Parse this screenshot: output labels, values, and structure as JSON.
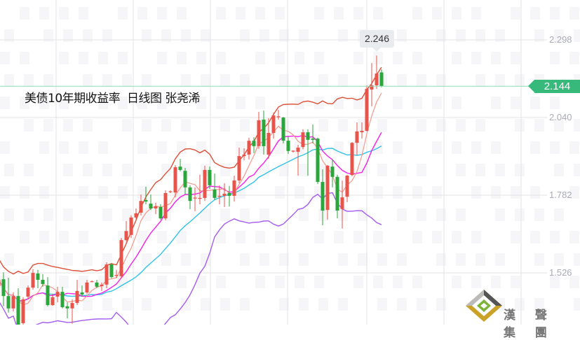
{
  "title": "美债10年期收益率  日线图 张尧浠",
  "logo_text": "漢 聲 集 團",
  "colors": {
    "up": "#e8534a",
    "down": "#2aa63a",
    "ma5": "#f4988c",
    "ma10": "#f521e9",
    "mid": "#33c2ea",
    "upper": "#dd5038",
    "lower": "#a45cf0",
    "last_line": "#8fdcb3",
    "last_tag": "#37b97c",
    "grid": "#e3e3e6"
  },
  "chart_data": {
    "type": "candlestick",
    "title": "美债10年期收益率  日线图 张尧浠",
    "y_ticks": [
      "2.298",
      "2.040",
      "1.782",
      "1.526"
    ],
    "ylim": [
      1.345,
      2.37
    ],
    "grid": true,
    "last_price": "2.144",
    "tooltip_high": "2.246",
    "indicators": [
      "MA5",
      "MA10",
      "Bollinger Bands"
    ],
    "ohlc": [
      [
        1.48,
        1.524,
        1.473,
        1.501
      ],
      [
        1.503,
        1.526,
        1.413,
        1.447
      ],
      [
        1.447,
        1.508,
        1.392,
        1.406
      ],
      [
        1.406,
        1.459,
        1.396,
        1.447
      ],
      [
        1.447,
        1.473,
        1.352,
        1.352
      ],
      [
        1.357,
        1.443,
        1.352,
        1.436
      ],
      [
        1.445,
        1.482,
        1.436,
        1.475
      ],
      [
        1.475,
        1.536,
        1.468,
        1.524
      ],
      [
        1.522,
        1.534,
        1.473,
        1.501
      ],
      [
        1.501,
        1.52,
        1.478,
        1.487
      ],
      [
        1.482,
        1.51,
        1.413,
        1.417
      ],
      [
        1.417,
        1.454,
        1.415,
        1.443
      ],
      [
        1.445,
        1.478,
        1.426,
        1.461
      ],
      [
        1.461,
        1.478,
        1.406,
        1.41
      ],
      [
        1.413,
        1.426,
        1.373,
        1.406
      ],
      [
        1.406,
        1.436,
        1.355,
        1.424
      ],
      [
        1.424,
        1.501,
        1.417,
        1.464
      ],
      [
        1.459,
        1.482,
        1.445,
        1.452
      ],
      [
        1.459,
        1.501,
        1.454,
        1.492
      ],
      [
        1.494,
        1.499,
        1.494,
        1.496
      ],
      [
        1.492,
        1.501,
        1.473,
        1.478
      ],
      [
        1.48,
        1.492,
        1.464,
        1.485
      ],
      [
        1.485,
        1.559,
        1.473,
        1.552
      ],
      [
        1.552,
        1.557,
        1.506,
        1.51
      ],
      [
        1.515,
        1.534,
        1.506,
        1.517
      ],
      [
        1.513,
        1.64,
        1.506,
        1.633
      ],
      [
        1.633,
        1.696,
        1.629,
        1.663
      ],
      [
        1.65,
        1.715,
        1.64,
        1.708
      ],
      [
        1.708,
        1.738,
        1.699,
        1.722
      ],
      [
        1.724,
        1.784,
        1.715,
        1.763
      ],
      [
        1.766,
        1.81,
        1.752,
        1.761
      ],
      [
        1.754,
        1.784,
        1.733,
        1.738
      ],
      [
        1.738,
        1.757,
        1.719,
        1.745
      ],
      [
        1.743,
        1.752,
        1.701,
        1.705
      ],
      [
        1.705,
        1.798,
        1.699,
        1.789
      ],
      [
        1.793,
        1.798,
        1.789,
        1.795
      ],
      [
        1.791,
        1.882,
        1.775,
        1.875
      ],
      [
        1.877,
        1.903,
        1.861,
        1.866
      ],
      [
        1.863,
        1.873,
        1.784,
        1.808
      ],
      [
        1.808,
        1.815,
        1.736,
        1.763
      ],
      [
        1.772,
        1.808,
        1.729,
        1.774
      ],
      [
        1.77,
        1.85,
        1.752,
        1.773
      ],
      [
        1.773,
        1.88,
        1.763,
        1.866
      ],
      [
        1.866,
        1.877,
        1.803,
        1.815
      ],
      [
        1.801,
        1.854,
        1.766,
        1.773
      ],
      [
        1.777,
        1.815,
        1.752,
        1.78
      ],
      [
        1.78,
        1.822,
        1.743,
        1.787
      ],
      [
        1.789,
        1.813,
        1.745,
        1.78
      ],
      [
        1.78,
        1.847,
        1.761,
        1.831
      ],
      [
        1.831,
        1.94,
        1.822,
        1.912
      ],
      [
        1.912,
        1.938,
        1.898,
        1.917
      ],
      [
        1.917,
        1.973,
        1.901,
        1.963
      ],
      [
        1.963,
        1.975,
        1.922,
        1.945
      ],
      [
        1.945,
        2.059,
        1.936,
        2.031
      ],
      [
        2.033,
        2.063,
        1.917,
        1.945
      ],
      [
        1.917,
        2.038,
        1.903,
        1.989
      ],
      [
        1.989,
        2.056,
        1.97,
        2.047
      ],
      [
        2.041,
        2.066,
        2.033,
        2.044
      ],
      [
        2.04,
        2.042,
        1.954,
        1.963
      ],
      [
        1.963,
        1.977,
        1.919,
        1.929
      ],
      [
        1.927,
        1.931,
        1.924,
        1.93
      ],
      [
        1.926,
        1.949,
        1.847,
        1.94
      ],
      [
        1.942,
        2.001,
        1.935,
        1.991
      ],
      [
        1.991,
        2.001,
        1.847,
        1.966
      ],
      [
        1.97,
        2.017,
        1.954,
        1.966
      ],
      [
        1.97,
        1.973,
        1.819,
        1.826
      ],
      [
        1.826,
        1.868,
        1.682,
        1.731
      ],
      [
        1.733,
        1.882,
        1.701,
        1.88
      ],
      [
        1.877,
        1.901,
        1.808,
        1.843
      ],
      [
        1.843,
        1.85,
        1.705,
        1.731
      ],
      [
        1.736,
        1.831,
        1.671,
        1.775
      ],
      [
        1.777,
        1.85,
        1.759,
        1.847
      ],
      [
        1.849,
        1.959,
        1.845,
        1.956
      ],
      [
        1.956,
        2.024,
        1.915,
        1.994
      ],
      [
        1.991,
        2.024,
        1.97,
        1.996
      ],
      [
        1.996,
        2.147,
        1.994,
        2.135
      ],
      [
        2.133,
        2.221,
        2.077,
        2.147
      ],
      [
        2.147,
        2.246,
        2.135,
        2.186
      ],
      [
        2.19,
        2.2,
        2.141,
        2.144
      ]
    ]
  }
}
